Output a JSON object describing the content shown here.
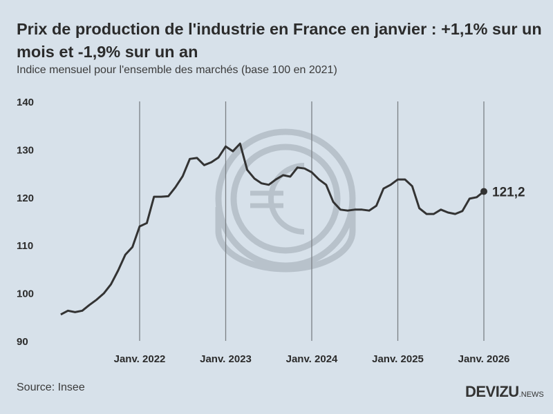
{
  "title": "Prix de production de l'industrie en France en janvier : +1,1% sur un mois et -1,9% sur un an",
  "subtitle": "Indice mensuel pour l'ensemble des marchés (base 100 en 2021)",
  "source": "Source: Insee",
  "logo": {
    "main": "DEVIZU",
    "suffix": ".NEWS"
  },
  "chart_data": {
    "type": "line",
    "ylim": [
      90,
      140
    ],
    "yticks": [
      "90",
      "100",
      "110",
      "120",
      "130",
      "140"
    ],
    "xticks": [
      "Janv. 2022",
      "Janv. 2023",
      "Janv. 2024",
      "Janv. 2025",
      "Janv. 2026"
    ],
    "grid": "vertical lines at January",
    "end_label": "121,2",
    "line_color": "#333333",
    "x_start": "2021-02",
    "x_end": "2026-01",
    "values": [
      95.5,
      96.3,
      96.0,
      96.3,
      97.5,
      98.6,
      99.9,
      101.8,
      104.7,
      108.0,
      109.6,
      113.9,
      114.6,
      120.1,
      120.1,
      120.2,
      122.1,
      124.4,
      128.0,
      128.2,
      126.7,
      127.3,
      128.3,
      130.6,
      129.6,
      131.2,
      125.7,
      123.9,
      122.9,
      122.6,
      123.7,
      124.6,
      124.3,
      126.2,
      126.0,
      125.2,
      123.7,
      122.6,
      119.0,
      117.4,
      117.2,
      117.4,
      117.4,
      117.2,
      118.2,
      121.8,
      122.6,
      123.7,
      123.7,
      122.3,
      117.7,
      116.5,
      116.5,
      117.4,
      116.8,
      116.5,
      117.1,
      119.7,
      120.0,
      121.2
    ]
  }
}
